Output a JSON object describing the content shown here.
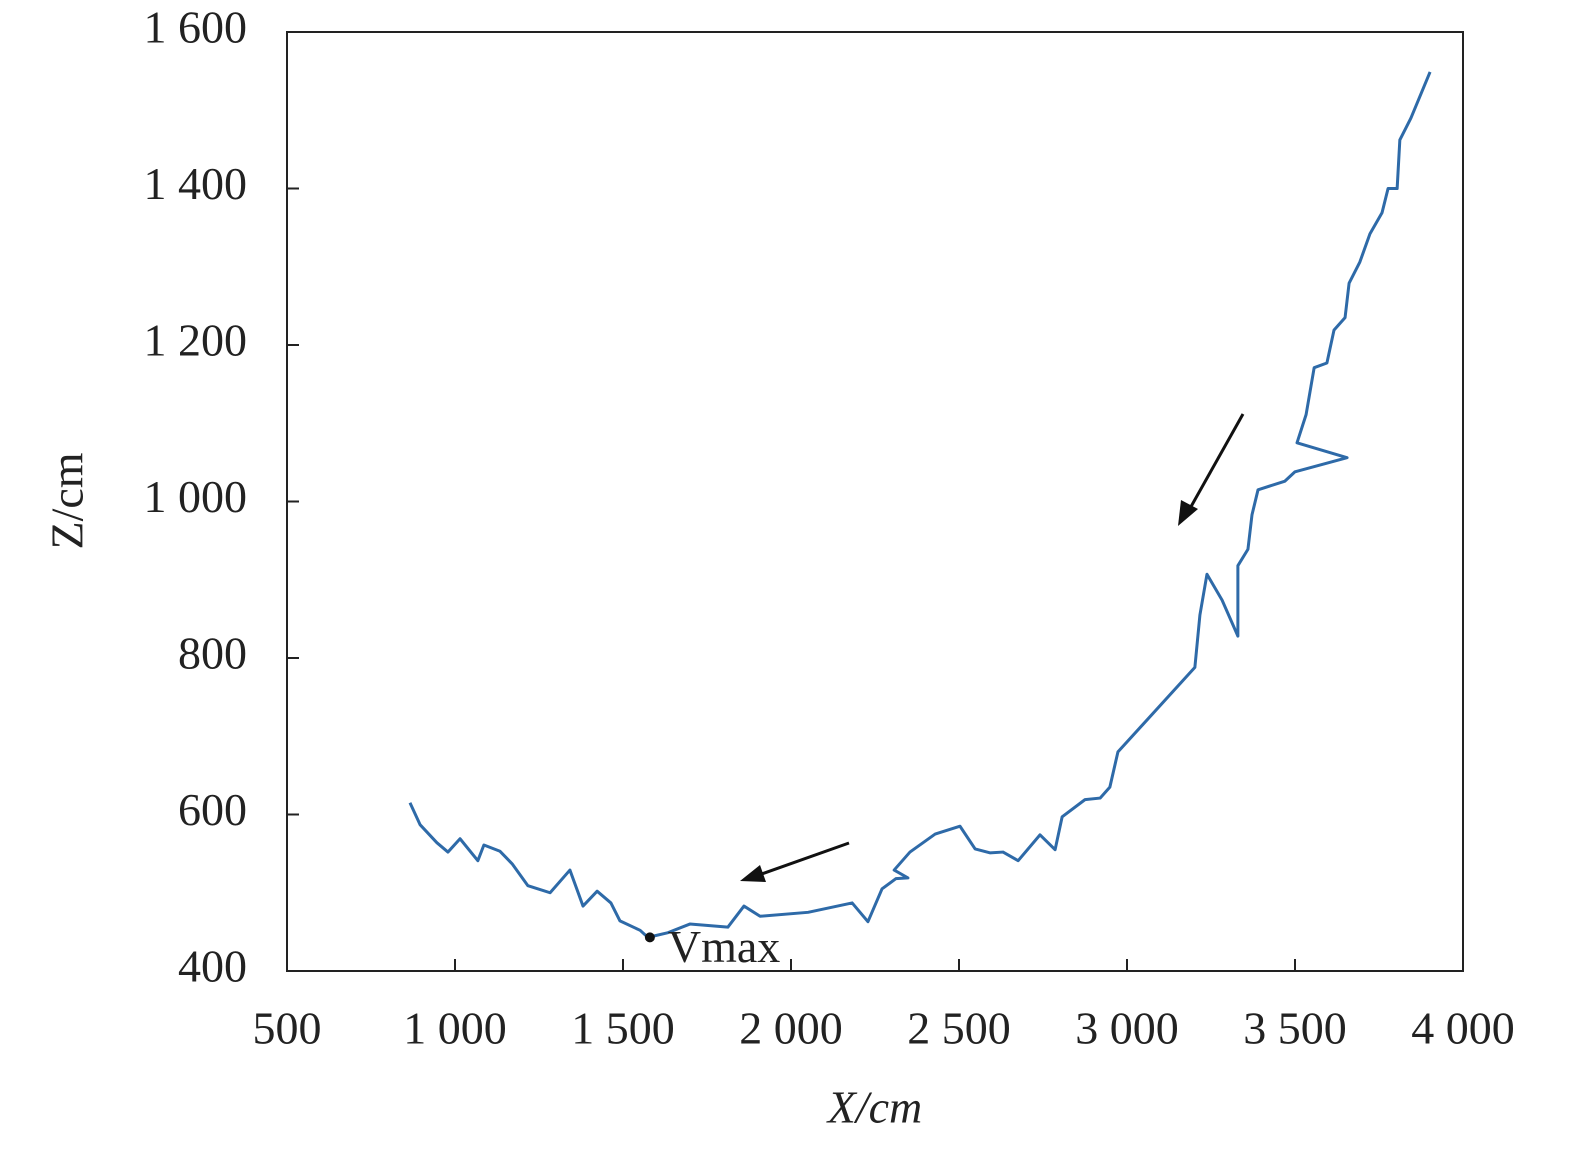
{
  "chart_data": {
    "type": "line",
    "xlabel": "X/cm",
    "ylabel": "Z/cm",
    "xlim": [
      500,
      4000
    ],
    "xticks": [
      500,
      {
        "value": 1000,
        "label": "1 000"
      },
      {
        "value": 1500,
        "label": "1 500"
      },
      {
        "value": 2000,
        "label": "2 000"
      },
      {
        "value": 2500,
        "label": "2 500"
      },
      {
        "value": 3000,
        "label": "3 000"
      },
      {
        "value": 3500,
        "label": "3 500"
      },
      {
        "value": 4000,
        "label": "4 000"
      }
    ],
    "ylim": [
      400,
      1600
    ],
    "yticks": [
      400,
      600,
      800,
      {
        "value": 1000,
        "label": "1 000"
      },
      {
        "value": 1200,
        "label": "1 200"
      },
      {
        "value": 1400,
        "label": "1 400"
      },
      {
        "value": 1600,
        "label": "1 600"
      }
    ],
    "grid": false,
    "series": [
      {
        "color": "#2e6aa8",
        "x": [
          866,
          896,
          946,
          979,
          1015,
          1068,
          1086,
          1134,
          1170,
          1217,
          1283,
          1342,
          1381,
          1423,
          1464,
          1491,
          1551,
          1574,
          1634,
          1699,
          1812,
          1860,
          1908,
          2051,
          2182,
          2229,
          2271,
          2312,
          2348,
          2307,
          2354,
          2429,
          2503,
          2548,
          2592,
          2631,
          2676,
          2741,
          2786,
          2807,
          2875,
          2920,
          2949,
          2973,
          3202,
          3217,
          3238,
          3283,
          3330,
          3330,
          3360,
          3372,
          3390,
          3470,
          3500,
          3655,
          3506,
          3533,
          3557,
          3595,
          3616,
          3649,
          3661,
          3693,
          3723,
          3759,
          3777,
          3804,
          3812,
          3845,
          3902
        ],
        "values": [
          615,
          587,
          564,
          552,
          569,
          541,
          561,
          553,
          537,
          509,
          500,
          529,
          483,
          502,
          487,
          464,
          452,
          443,
          449,
          460,
          456,
          483,
          470,
          475,
          487,
          463,
          505,
          518,
          519,
          529,
          552,
          575,
          585,
          556,
          551,
          552,
          541,
          574,
          555,
          597,
          619,
          621,
          635,
          680,
          788,
          855,
          907,
          874,
          828,
          918,
          939,
          983,
          1015,
          1026,
          1038,
          1056,
          1075,
          1111,
          1171,
          1177,
          1219,
          1235,
          1279,
          1306,
          1342,
          1369,
          1400,
          1400,
          1462,
          1490,
          1549
        ]
      }
    ],
    "annotation": {
      "text": "Vmax",
      "x": 1580,
      "y": 443
    }
  }
}
